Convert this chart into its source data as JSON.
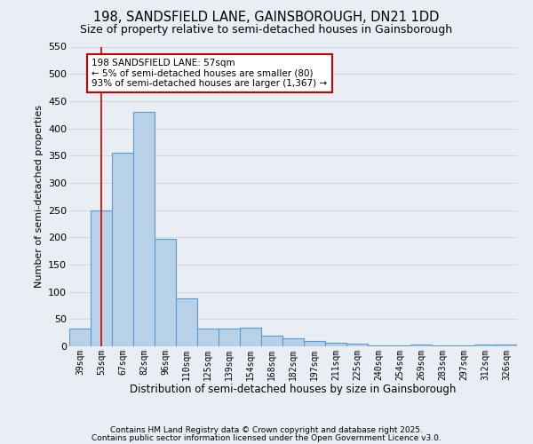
{
  "title_line1": "198, SANDSFIELD LANE, GAINSBOROUGH, DN21 1DD",
  "title_line2": "Size of property relative to semi-detached houses in Gainsborough",
  "xlabel": "Distribution of semi-detached houses by size in Gainsborough",
  "ylabel": "Number of semi-detached properties",
  "categories": [
    "39sqm",
    "53sqm",
    "67sqm",
    "82sqm",
    "96sqm",
    "110sqm",
    "125sqm",
    "139sqm",
    "154sqm",
    "168sqm",
    "182sqm",
    "197sqm",
    "211sqm",
    "225sqm",
    "240sqm",
    "254sqm",
    "269sqm",
    "283sqm",
    "297sqm",
    "312sqm",
    "326sqm"
  ],
  "values": [
    33,
    250,
    355,
    430,
    198,
    88,
    33,
    33,
    35,
    20,
    15,
    10,
    7,
    5,
    2,
    2,
    4,
    1,
    1,
    4,
    4
  ],
  "bar_color": "#b8d0e8",
  "bar_edge_color": "#5b9bd5",
  "vline_x": 1,
  "vline_color": "#cc0000",
  "annotation_text": "198 SANDSFIELD LANE: 57sqm\n← 5% of semi-detached houses are smaller (80)\n93% of semi-detached houses are larger (1,367) →",
  "annotation_box_color": "#ffffff",
  "annotation_box_edge": "#cc0000",
  "ylim": [
    0,
    550
  ],
  "yticks": [
    0,
    50,
    100,
    150,
    200,
    250,
    300,
    350,
    400,
    450,
    500,
    550
  ],
  "footnote1": "Contains HM Land Registry data © Crown copyright and database right 2025.",
  "footnote2": "Contains public sector information licensed under the Open Government Licence v3.0.",
  "bg_color": "#e8eef4",
  "grid_color": "#d0d8e0"
}
